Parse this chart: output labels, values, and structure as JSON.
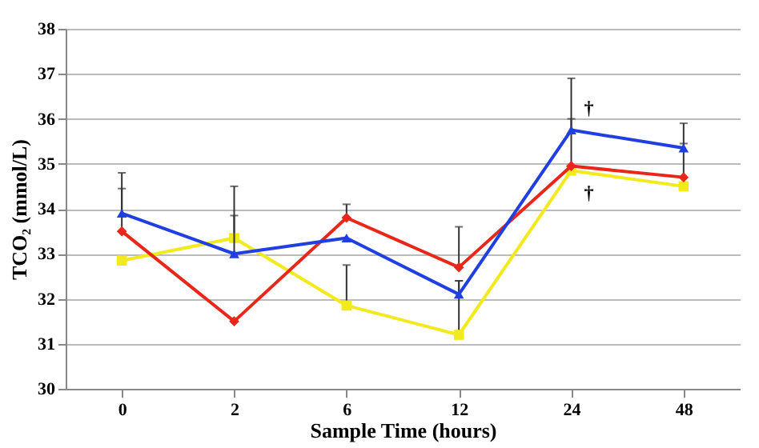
{
  "chart_data": {
    "type": "line",
    "xlabel": "Sample Time (hours)",
    "ylabel": "TCO₂ (mmol/L)",
    "categories": [
      "0",
      "2",
      "6",
      "12",
      "24",
      "48"
    ],
    "ylim": [
      30,
      38
    ],
    "yticks": [
      30,
      31,
      32,
      33,
      34,
      35,
      36,
      37,
      38
    ],
    "grid": "y",
    "series": [
      {
        "color": "#1f3fe0",
        "marker": "triangle",
        "values": [
          33.9,
          33.0,
          33.35,
          32.1,
          35.75,
          35.35
        ],
        "errors": [
          [
            33.9,
            34.8
          ],
          [
            33.0,
            34.5
          ],
          null,
          [
            32.1,
            32.4
          ],
          [
            35.75,
            36.9
          ],
          [
            35.35,
            35.9
          ]
        ]
      },
      {
        "color": "#e8261a",
        "marker": "diamond",
        "values": [
          33.5,
          31.5,
          33.8,
          32.7,
          34.95,
          34.7
        ],
        "errors": [
          [
            33.5,
            34.45
          ],
          null,
          [
            33.8,
            34.1
          ],
          [
            32.7,
            33.6
          ],
          [
            34.95,
            36.0
          ],
          [
            34.7,
            35.45
          ]
        ]
      },
      {
        "color": "#f2ea1c",
        "marker": "square",
        "values": [
          32.85,
          33.35,
          31.85,
          31.2,
          34.85,
          34.5
        ],
        "errors": [
          null,
          [
            33.35,
            33.85
          ],
          [
            31.85,
            32.75
          ],
          [
            31.2,
            32.4
          ],
          null,
          null
        ]
      }
    ],
    "annotations": [
      {
        "text": "†",
        "x": "24",
        "y": 35.75
      },
      {
        "text": "†",
        "x": "24",
        "y": 34.85
      }
    ]
  }
}
